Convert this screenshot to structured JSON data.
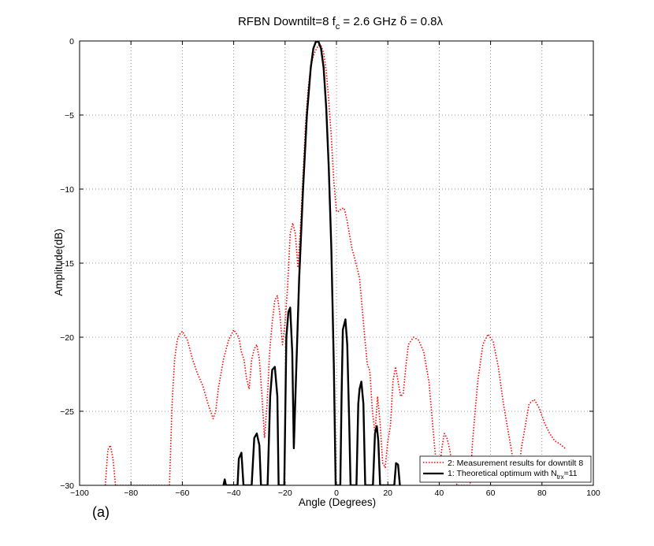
{
  "chart_data": {
    "type": "line",
    "title_parts": {
      "main": "RFBN  Downtilt=8 f",
      "sub_c": "c",
      "mid": " = 2.6 GHz ",
      "delta": "δ",
      "end": " = 0.8λ"
    },
    "xlabel": "Angle (Degrees)",
    "ylabel": "Amplitude(dB)",
    "panel_label": "(a)",
    "xlim": [
      -100,
      100
    ],
    "ylim": [
      -30,
      0
    ],
    "xticks": [
      -100,
      -80,
      -60,
      -40,
      -20,
      0,
      20,
      40,
      60,
      80,
      100
    ],
    "yticks": [
      0,
      -5,
      -10,
      -15,
      -20,
      -25,
      -30
    ],
    "grid": true,
    "legend_position": "bottom-right",
    "legend": {
      "measurement": "2: Measurement results for downtilt 8",
      "theory_prefix": "1: Theoretical optimum with N",
      "theory_sub": "trx",
      "theory_suffix": "=11"
    },
    "series": [
      {
        "key": "measurement",
        "color": "#ff0000",
        "style": "dotted",
        "points": [
          [
            -90,
            -30
          ],
          [
            -89,
            -27.6
          ],
          [
            -88,
            -27.3
          ],
          [
            -87,
            -28.2
          ],
          [
            -86,
            -30
          ],
          [
            -65,
            -30
          ],
          [
            -64,
            -24.5
          ],
          [
            -63,
            -21.5
          ],
          [
            -62,
            -20.2
          ],
          [
            -61,
            -19.8
          ],
          [
            -60,
            -19.6
          ],
          [
            -58,
            -20.2
          ],
          [
            -56,
            -21.5
          ],
          [
            -54,
            -22.5
          ],
          [
            -52,
            -23.3
          ],
          [
            -50,
            -24.5
          ],
          [
            -48,
            -25.5
          ],
          [
            -47,
            -25.0
          ],
          [
            -46,
            -23.5
          ],
          [
            -44,
            -21.5
          ],
          [
            -42,
            -20.2
          ],
          [
            -40,
            -19.5
          ],
          [
            -38,
            -20.0
          ],
          [
            -37,
            -21.0
          ],
          [
            -36,
            -21.5
          ],
          [
            -35,
            -22.8
          ],
          [
            -34,
            -23.5
          ],
          [
            -33,
            -21.5
          ],
          [
            -32,
            -20.8
          ],
          [
            -31,
            -20.5
          ],
          [
            -30,
            -21.5
          ],
          [
            -29,
            -24.0
          ],
          [
            -28,
            -26.8
          ],
          [
            -27,
            -24.5
          ],
          [
            -26,
            -21.0
          ],
          [
            -25,
            -19.0
          ],
          [
            -24,
            -17.5
          ],
          [
            -23,
            -17.2
          ],
          [
            -22,
            -18.5
          ],
          [
            -21,
            -20.5
          ],
          [
            -20,
            -19.0
          ],
          [
            -19,
            -16.5
          ],
          [
            -18,
            -13.0
          ],
          [
            -17,
            -12.3
          ],
          [
            -16,
            -13.0
          ],
          [
            -15,
            -15.3
          ],
          [
            -14,
            -12.5
          ],
          [
            -13,
            -9.0
          ],
          [
            -12,
            -5.5
          ],
          [
            -11,
            -3.2
          ],
          [
            -10,
            -1.8
          ],
          [
            -9,
            -1.0
          ],
          [
            -8,
            -0.6
          ],
          [
            -7,
            -0.3
          ],
          [
            -6,
            -0.3
          ],
          [
            -5,
            -0.8
          ],
          [
            -4,
            -2.0
          ],
          [
            -3,
            -4.0
          ],
          [
            -2,
            -6.5
          ],
          [
            -1,
            -9.5
          ],
          [
            0,
            -11.5
          ],
          [
            1,
            -11.5
          ],
          [
            2,
            -11.3
          ],
          [
            3,
            -11.3
          ],
          [
            4,
            -12.0
          ],
          [
            5,
            -13.0
          ],
          [
            6,
            -14.0
          ],
          [
            7,
            -14.6
          ],
          [
            8,
            -15.3
          ],
          [
            9,
            -16.0
          ],
          [
            10,
            -18.0
          ],
          [
            11,
            -20.0
          ],
          [
            12,
            -21.8
          ],
          [
            13,
            -22.3
          ],
          [
            14,
            -25.0
          ],
          [
            15,
            -26.5
          ],
          [
            16,
            -24.0
          ],
          [
            17,
            -25.8
          ],
          [
            18,
            -28.5
          ],
          [
            19,
            -28.8
          ],
          [
            20,
            -27.0
          ],
          [
            21,
            -26.0
          ],
          [
            22,
            -23.0
          ],
          [
            23,
            -22.0
          ],
          [
            24,
            -23.0
          ],
          [
            25,
            -24.0
          ],
          [
            26,
            -23.8
          ],
          [
            27,
            -22.0
          ],
          [
            28,
            -20.5
          ],
          [
            30,
            -20.0
          ],
          [
            32,
            -20.2
          ],
          [
            34,
            -21.0
          ],
          [
            36,
            -23.0
          ],
          [
            38,
            -27.0
          ],
          [
            39,
            -28.8
          ],
          [
            40,
            -29.0
          ],
          [
            41,
            -27.5
          ],
          [
            42,
            -26.5
          ],
          [
            43,
            -26.8
          ],
          [
            44,
            -27.5
          ],
          [
            45,
            -28.5
          ],
          [
            46,
            -29.5
          ],
          [
            47,
            -30
          ],
          [
            52,
            -30
          ],
          [
            53,
            -27.0
          ],
          [
            55,
            -23.0
          ],
          [
            57,
            -20.5
          ],
          [
            59,
            -19.8
          ],
          [
            61,
            -20.3
          ],
          [
            63,
            -22.0
          ],
          [
            65,
            -24.5
          ],
          [
            67,
            -26.5
          ],
          [
            69,
            -28.5
          ],
          [
            70,
            -29.5
          ],
          [
            71,
            -29.0
          ],
          [
            72,
            -27.5
          ],
          [
            74,
            -25.5
          ],
          [
            75,
            -24.5
          ],
          [
            77,
            -24.2
          ],
          [
            79,
            -24.8
          ],
          [
            81,
            -25.8
          ],
          [
            83,
            -26.5
          ],
          [
            85,
            -27.0
          ],
          [
            87,
            -27.2
          ],
          [
            89,
            -27.5
          ]
        ]
      },
      {
        "key": "theory",
        "color": "#000000",
        "style": "solid",
        "points": [
          [
            -44,
            -30
          ],
          [
            -43.5,
            -29.6
          ],
          [
            -43,
            -30
          ],
          [
            -38.5,
            -30
          ],
          [
            -38,
            -28.2
          ],
          [
            -37,
            -27.8
          ],
          [
            -36.2,
            -30
          ],
          [
            -33,
            -30
          ],
          [
            -32,
            -26.8
          ],
          [
            -31,
            -26.5
          ],
          [
            -30,
            -27.3
          ],
          [
            -29.4,
            -30
          ],
          [
            -26.8,
            -30
          ],
          [
            -25.8,
            -24.0
          ],
          [
            -25,
            -22.2
          ],
          [
            -24,
            -22.0
          ],
          [
            -23,
            -24.0
          ],
          [
            -22.5,
            -30
          ],
          [
            -20.3,
            -30
          ],
          [
            -19.5,
            -20.0
          ],
          [
            -18.7,
            -18.3
          ],
          [
            -18,
            -18.0
          ],
          [
            -17.2,
            -21.0
          ],
          [
            -16.6,
            -27.5
          ],
          [
            -15.8,
            -23.0
          ],
          [
            -14.5,
            -16.0
          ],
          [
            -13,
            -10.0
          ],
          [
            -11.5,
            -5.0
          ],
          [
            -10,
            -1.8
          ],
          [
            -9,
            -0.5
          ],
          [
            -8,
            -0.05
          ],
          [
            -7,
            -0.05
          ],
          [
            -6,
            -0.5
          ],
          [
            -5,
            -1.8
          ],
          [
            -4,
            -4.5
          ],
          [
            -3,
            -8.5
          ],
          [
            -2,
            -14.0
          ],
          [
            -1,
            -22.0
          ],
          [
            -0.3,
            -30
          ],
          [
            1.5,
            -30
          ],
          [
            2,
            -24.0
          ],
          [
            2.5,
            -19.5
          ],
          [
            3.5,
            -18.8
          ],
          [
            4.2,
            -20.5
          ],
          [
            5,
            -26.0
          ],
          [
            5.5,
            -30
          ],
          [
            7.8,
            -30
          ],
          [
            8.5,
            -24.5
          ],
          [
            9,
            -23.5
          ],
          [
            9.7,
            -23.0
          ],
          [
            10.5,
            -24.5
          ],
          [
            11.2,
            -30
          ],
          [
            14.2,
            -30
          ],
          [
            15,
            -26.5
          ],
          [
            15.7,
            -26.0
          ],
          [
            16.3,
            -27.0
          ],
          [
            17,
            -30
          ],
          [
            22.5,
            -30
          ],
          [
            23.2,
            -28.5
          ],
          [
            24,
            -28.6
          ],
          [
            24.7,
            -30
          ]
        ]
      }
    ]
  }
}
